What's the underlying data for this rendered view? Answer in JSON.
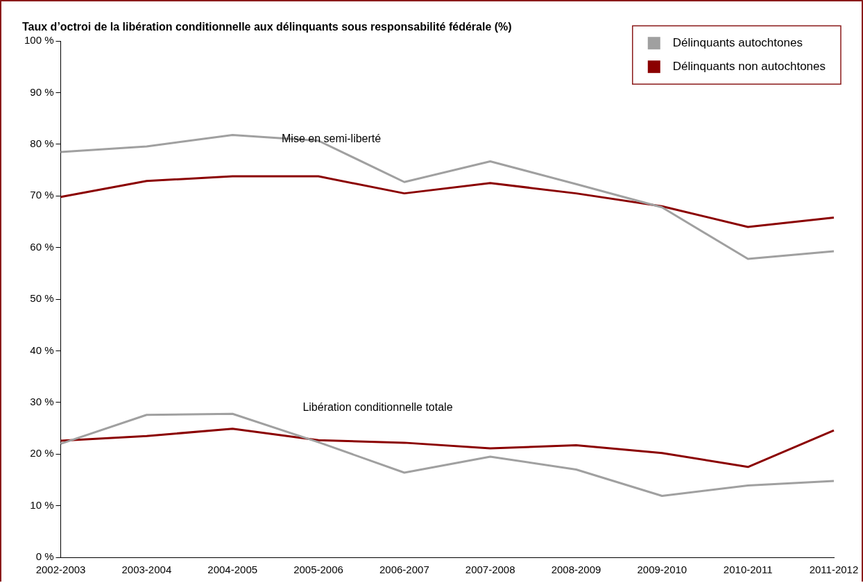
{
  "chart_data": {
    "type": "line",
    "title": "Taux d’octroi de la libération conditionnelle aux délinquants sous responsabilité fédérale (%)",
    "categories": [
      "2002-2003",
      "2003-2004",
      "2004-2005",
      "2005-2006",
      "2006-2007",
      "2007-2008",
      "2008-2009",
      "2009-2010",
      "2010-2011",
      "2011-2012"
    ],
    "series": [
      {
        "name": "Délinquants autochtones",
        "color": "#a0a0a0",
        "values": [
          78.5,
          79.6,
          81.8,
          80.7,
          72.7,
          76.7,
          72.3,
          67.8,
          57.8,
          59.3
        ]
      },
      {
        "name": "Délinquants non autochtones",
        "color": "#8b0000",
        "values": [
          69.8,
          72.9,
          73.8,
          73.8,
          70.5,
          72.5,
          70.5,
          68.0,
          64.0,
          65.8
        ]
      },
      {
        "color": "#a0a0a0",
        "values": [
          22.0,
          27.6,
          27.8,
          22.3,
          16.4,
          19.5,
          17.0,
          11.9,
          13.9,
          14.8
        ]
      },
      {
        "color": "#8b0000",
        "values": [
          22.6,
          23.5,
          24.9,
          22.7,
          22.2,
          21.1,
          21.7,
          20.2,
          17.5,
          24.6
        ]
      }
    ],
    "ylim": [
      0,
      100
    ],
    "yticks": [
      {
        "value": 0,
        "label": "0 %"
      },
      {
        "value": 10,
        "label": "10 %"
      },
      {
        "value": 20,
        "label": "20 %"
      },
      {
        "value": 30,
        "label": "30 %"
      },
      {
        "value": 40,
        "label": "40 %"
      },
      {
        "value": 50,
        "label": "50 %"
      },
      {
        "value": 60,
        "label": "60 %"
      },
      {
        "value": 70,
        "label": "70 %"
      },
      {
        "value": 80,
        "label": "80 %"
      },
      {
        "value": 90,
        "label": "90 %"
      },
      {
        "value": 100,
        "label": "100 %"
      }
    ],
    "annotations": [
      "Mise en semi-liberté",
      "Libération conditionnelle totale"
    ],
    "legend": "top right",
    "grid": false,
    "marker": "none",
    "line_style": "solid"
  }
}
